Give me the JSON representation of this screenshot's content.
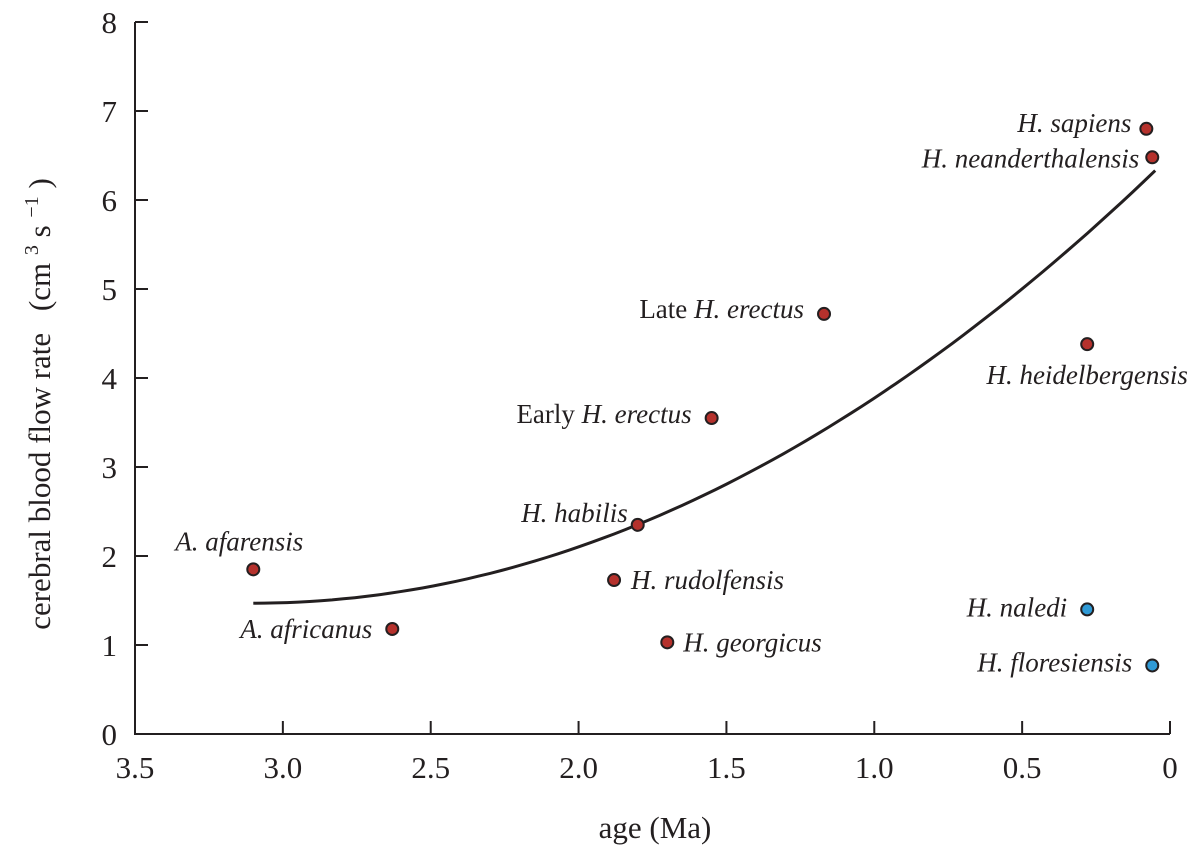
{
  "chart_data": {
    "type": "scatter",
    "title": "",
    "xlabel": "age (Ma)",
    "ylabel": "cerebral blood flow rate",
    "ylabel_unit": {
      "open": "(cm",
      "exp1": "3",
      "mid": " s",
      "exp2": "−1",
      "close": ")"
    },
    "xlim": [
      3.5,
      0
    ],
    "ylim": [
      0,
      8
    ],
    "x_ticks": [
      3.5,
      3.0,
      2.5,
      2.0,
      1.5,
      1.0,
      0.5,
      0
    ],
    "x_tick_labels": [
      "3.5",
      "3.0",
      "2.5",
      "2.0",
      "1.5",
      "1.0",
      "0.5",
      "0"
    ],
    "y_ticks": [
      0,
      1,
      2,
      3,
      4,
      5,
      6,
      7,
      8
    ],
    "y_tick_labels": [
      "0",
      "1",
      "2",
      "3",
      "4",
      "5",
      "6",
      "7",
      "8"
    ],
    "colors": {
      "red": "#b5312c",
      "blue": "#2f9ad6",
      "ink": "#231f20"
    },
    "trend": {
      "type": "quadratic",
      "x_range": [
        3.1,
        0.05
      ],
      "y_at_start": 1.47,
      "y_at_end": 6.33
    },
    "points": [
      {
        "name": "A. afarensis",
        "x": 3.1,
        "y": 1.85,
        "color": "red"
      },
      {
        "name": "A. africanus",
        "x": 2.63,
        "y": 1.18,
        "color": "red"
      },
      {
        "name": "H. habilis",
        "x": 1.8,
        "y": 2.35,
        "color": "red"
      },
      {
        "name": "H. rudolfensis",
        "x": 1.88,
        "y": 1.73,
        "color": "red"
      },
      {
        "name": "H. georgicus",
        "x": 1.7,
        "y": 1.03,
        "color": "red"
      },
      {
        "name": "Early H. erectus",
        "x": 1.55,
        "y": 3.55,
        "color": "red"
      },
      {
        "name": "Late H. erectus",
        "x": 1.17,
        "y": 4.72,
        "color": "red"
      },
      {
        "name": "H. heidelbergensis",
        "x": 0.28,
        "y": 4.38,
        "color": "red"
      },
      {
        "name": "H. sapiens",
        "x": 0.08,
        "y": 6.8,
        "color": "red"
      },
      {
        "name": "H. neanderthalensis",
        "x": 0.06,
        "y": 6.48,
        "color": "red"
      },
      {
        "name": "H. naledi",
        "x": 0.28,
        "y": 1.4,
        "color": "blue"
      },
      {
        "name": "H. floresiensis",
        "x": 0.06,
        "y": 0.77,
        "color": "blue"
      }
    ],
    "labels": [
      {
        "point": 0,
        "plain": "",
        "italic": "A. afarensis"
      },
      {
        "point": 1,
        "plain": "",
        "italic": "A. africanus"
      },
      {
        "point": 2,
        "plain": "",
        "italic": "H. habilis"
      },
      {
        "point": 3,
        "plain": "",
        "italic": "H. rudolfensis"
      },
      {
        "point": 4,
        "plain": "",
        "italic": "H. georgicus"
      },
      {
        "point": 5,
        "plain": "Early ",
        "italic": "H. erectus"
      },
      {
        "point": 6,
        "plain": "Late ",
        "italic": "H. erectus"
      },
      {
        "point": 7,
        "plain": "",
        "italic": "H. heidelbergensis"
      },
      {
        "point": 8,
        "plain": "",
        "italic": "H. sapiens"
      },
      {
        "point": 9,
        "plain": "",
        "italic": "H. neanderthalensis"
      },
      {
        "point": 10,
        "plain": "",
        "italic": "H. naledi"
      },
      {
        "point": 11,
        "plain": "",
        "italic": "H. floresiensis"
      }
    ]
  }
}
